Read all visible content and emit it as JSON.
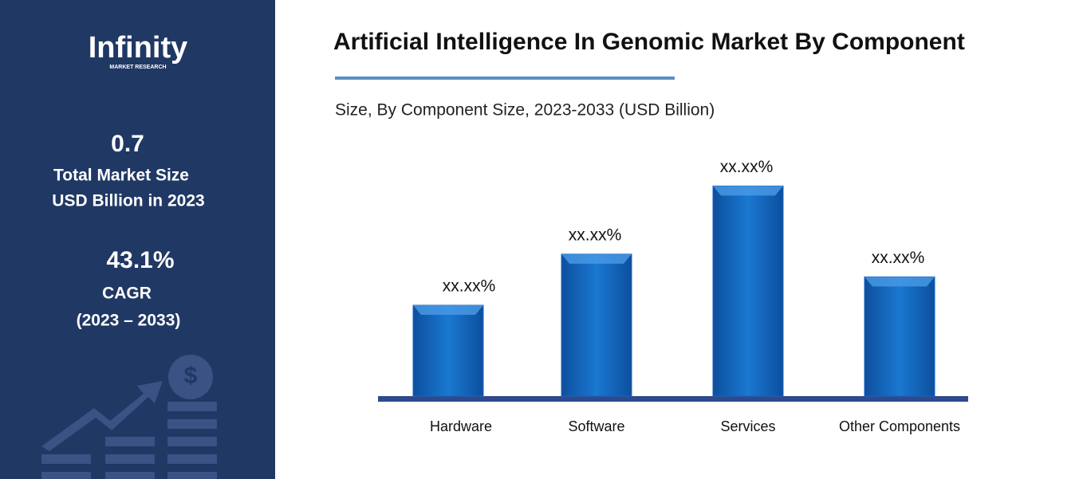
{
  "sidebar": {
    "logo": "Infinity",
    "logo_sub": "MARKET RESEARCH",
    "market_size": "0.7",
    "market_size_label_1": "Total Market Size",
    "market_size_label_2": "USD Billion in 2023",
    "cagr": "43.1%",
    "cagr_label": "CAGR",
    "cagr_period": "(2023 – 2033)"
  },
  "chart_data": {
    "type": "bar",
    "title": "Artificial Intelligence In Genomic Market By Component",
    "subtitle": "Size, By Component Size, 2023-2033 (USD Billion)",
    "categories": [
      "Hardware",
      "Software",
      "Services",
      "Other Components"
    ],
    "values": [
      16,
      25,
      37,
      21
    ],
    "value_labels": [
      "xx.xx%",
      "xx.xx%",
      "xx.xx%",
      "xx.xx%"
    ],
    "color": "#1565c0",
    "ylim": [
      0,
      40
    ]
  }
}
